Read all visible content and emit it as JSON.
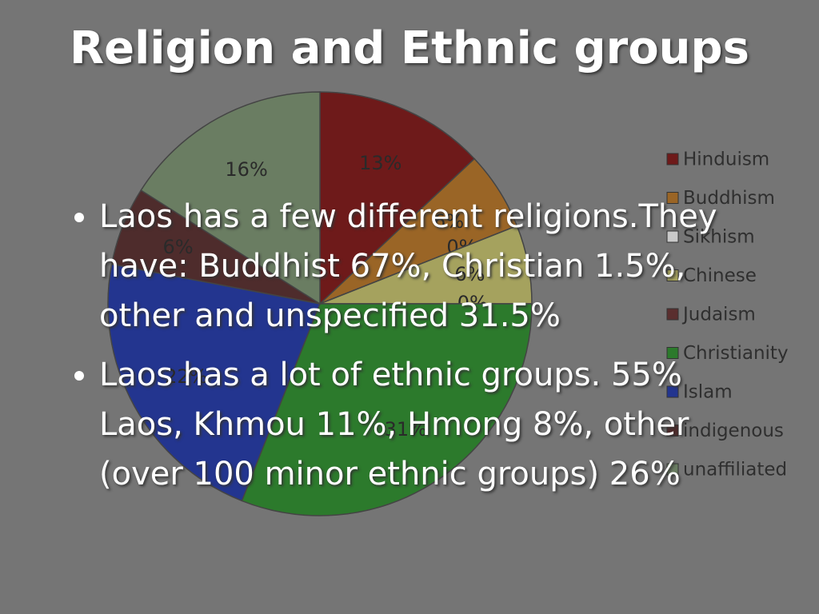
{
  "slide": {
    "title": "Religion and Ethnic groups",
    "bullets": [
      "Laos has a few different religions.They have: Buddhist 67%, Christian 1.5%, other and unspecified 31.5%",
      "Laos has a lot of ethnic groups. 55% Laos, Khmou 11%, Hmong 8%, other (over 100 minor ethnic groups) 26%"
    ]
  },
  "chart_data": {
    "type": "pie",
    "categories": [
      "Hinduism",
      "Buddhism",
      "Sikhism",
      "Chinese",
      "Judaism",
      "Christianity",
      "Islam",
      "indigenous",
      "unaffiliated"
    ],
    "values": [
      13,
      6,
      0,
      6,
      0,
      31,
      22,
      6,
      16
    ],
    "value_labels": [
      "13%",
      "6%",
      "0%",
      "6%",
      "0%",
      "31%",
      "22%",
      "6%",
      "16%"
    ],
    "colors": [
      "#6e1a1a",
      "#9a6526",
      "#c9c9c9",
      "#a5a25e",
      "#5a2e2e",
      "#2c7a2c",
      "#23358f",
      "#4e2c2c",
      "#6a7d62"
    ],
    "legend": "right"
  }
}
